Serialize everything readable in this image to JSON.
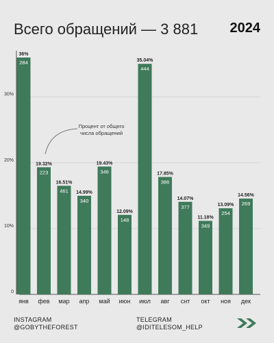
{
  "header": {
    "title": "Всего обращений — 3 881",
    "year": "2024"
  },
  "annotation": {
    "text_line1": "Процент от общего",
    "text_line2": "числа обращений"
  },
  "footer": {
    "instagram_label": "INSTAGRAM",
    "instagram_handle": "@GOBYTHEFOREST",
    "telegram_label": "TELEGRAM",
    "telegram_handle": "@IDITELESOM_HELP"
  },
  "colors": {
    "bar": "#3f7a5a",
    "background": "#e9e9e9",
    "grid": "#d2d2d2"
  },
  "icons": [
    "double-arrow-right-icon"
  ],
  "chart_data": {
    "type": "bar",
    "categories": [
      "янв",
      "фев",
      "мар",
      "апр",
      "май",
      "июн",
      "июл",
      "авг",
      "снт",
      "окт",
      "ноя",
      "дек"
    ],
    "series": [
      {
        "values": [
          36,
          19.32,
          16.51,
          14.99,
          19.43,
          12.09,
          35.04,
          17.85,
          14.07,
          11.18,
          13.09,
          14.56
        ],
        "percent_labels": [
          "36%",
          "19.32%",
          "16.51%",
          "14.99%",
          "19.43%",
          "12.09%",
          "35.04%",
          "17.85%",
          "14.07%",
          "11.18%",
          "13.09%",
          "14.56%"
        ],
        "counts": [
          "284",
          "223",
          "461",
          "340",
          "346",
          "148",
          "444",
          "386",
          "377",
          "349",
          "254",
          "269"
        ]
      }
    ],
    "ylim": [
      0,
      36
    ],
    "yticks": [
      0,
      10,
      20,
      30
    ],
    "ytick_labels": [
      "0",
      "10%",
      "20%",
      "30%"
    ],
    "grid": true,
    "title": "",
    "xlabel": "",
    "ylabel": ""
  }
}
